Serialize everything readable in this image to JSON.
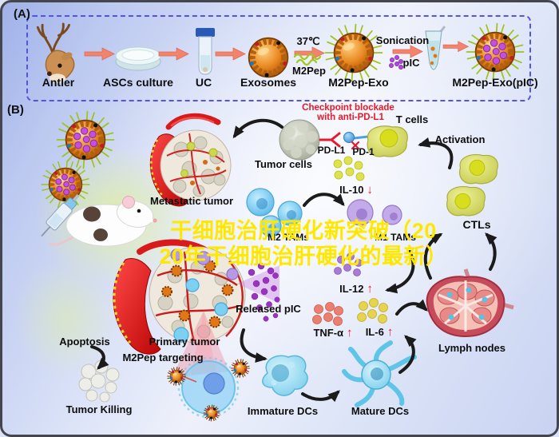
{
  "panel_a": {
    "tag": "(A)",
    "items": [
      {
        "label": "Antler"
      },
      {
        "label": "ASCs culture"
      },
      {
        "label": "UC"
      },
      {
        "label": "Exosomes"
      },
      {
        "label": "M2Pep-Exo"
      },
      {
        "label": "M2Pep-Exo(pIC)"
      }
    ],
    "temp_label": "37℃",
    "m2pep_label": "M2Pep",
    "sonication_label": "Sonication",
    "pic_label": "pIC"
  },
  "panel_b": {
    "tag": "(B)",
    "checkpoint_line1": "Checkpoint blockade",
    "checkpoint_line2": "with anti-PD-L1",
    "t_cells": "T cells",
    "activation": "Activation",
    "tumor_cells": "Tumor cells",
    "pd_l1": "PD-L1",
    "pd_1": "PD-1",
    "metastatic_tumor": "Metastatic tumor",
    "ctls": "CTLs",
    "il10": "IL-10",
    "il10_arrow": "↓",
    "m2_tams": "M2 TAMs",
    "m1_tams": "M1 TAMs",
    "il12": "IL-12",
    "il12_arrow": "↑",
    "released_pic": "Released pIC",
    "tnf": "TNF-α",
    "tnf_arrow": "↑",
    "il6": "IL-6",
    "il6_arrow": "↑",
    "lymph_nodes": "Lymph nodes",
    "primary_tumor": "Primary tumor",
    "m2pep_targeting": "M2Pep targeting",
    "apoptosis": "Apoptosis",
    "tumor_killing": "Tumor Killing",
    "immature_dcs": "Immature DCs",
    "mature_dcs": "Mature DCs"
  },
  "watermark": {
    "line1": "干细胞治肝硬化新突破（20",
    "line2": "20年干细胞治肝硬化的最新）"
  },
  "colors": {
    "accent_red": "#e8192c",
    "watermark_yellow": "#ffe800",
    "dashed_border_blue": "#5552ea"
  }
}
